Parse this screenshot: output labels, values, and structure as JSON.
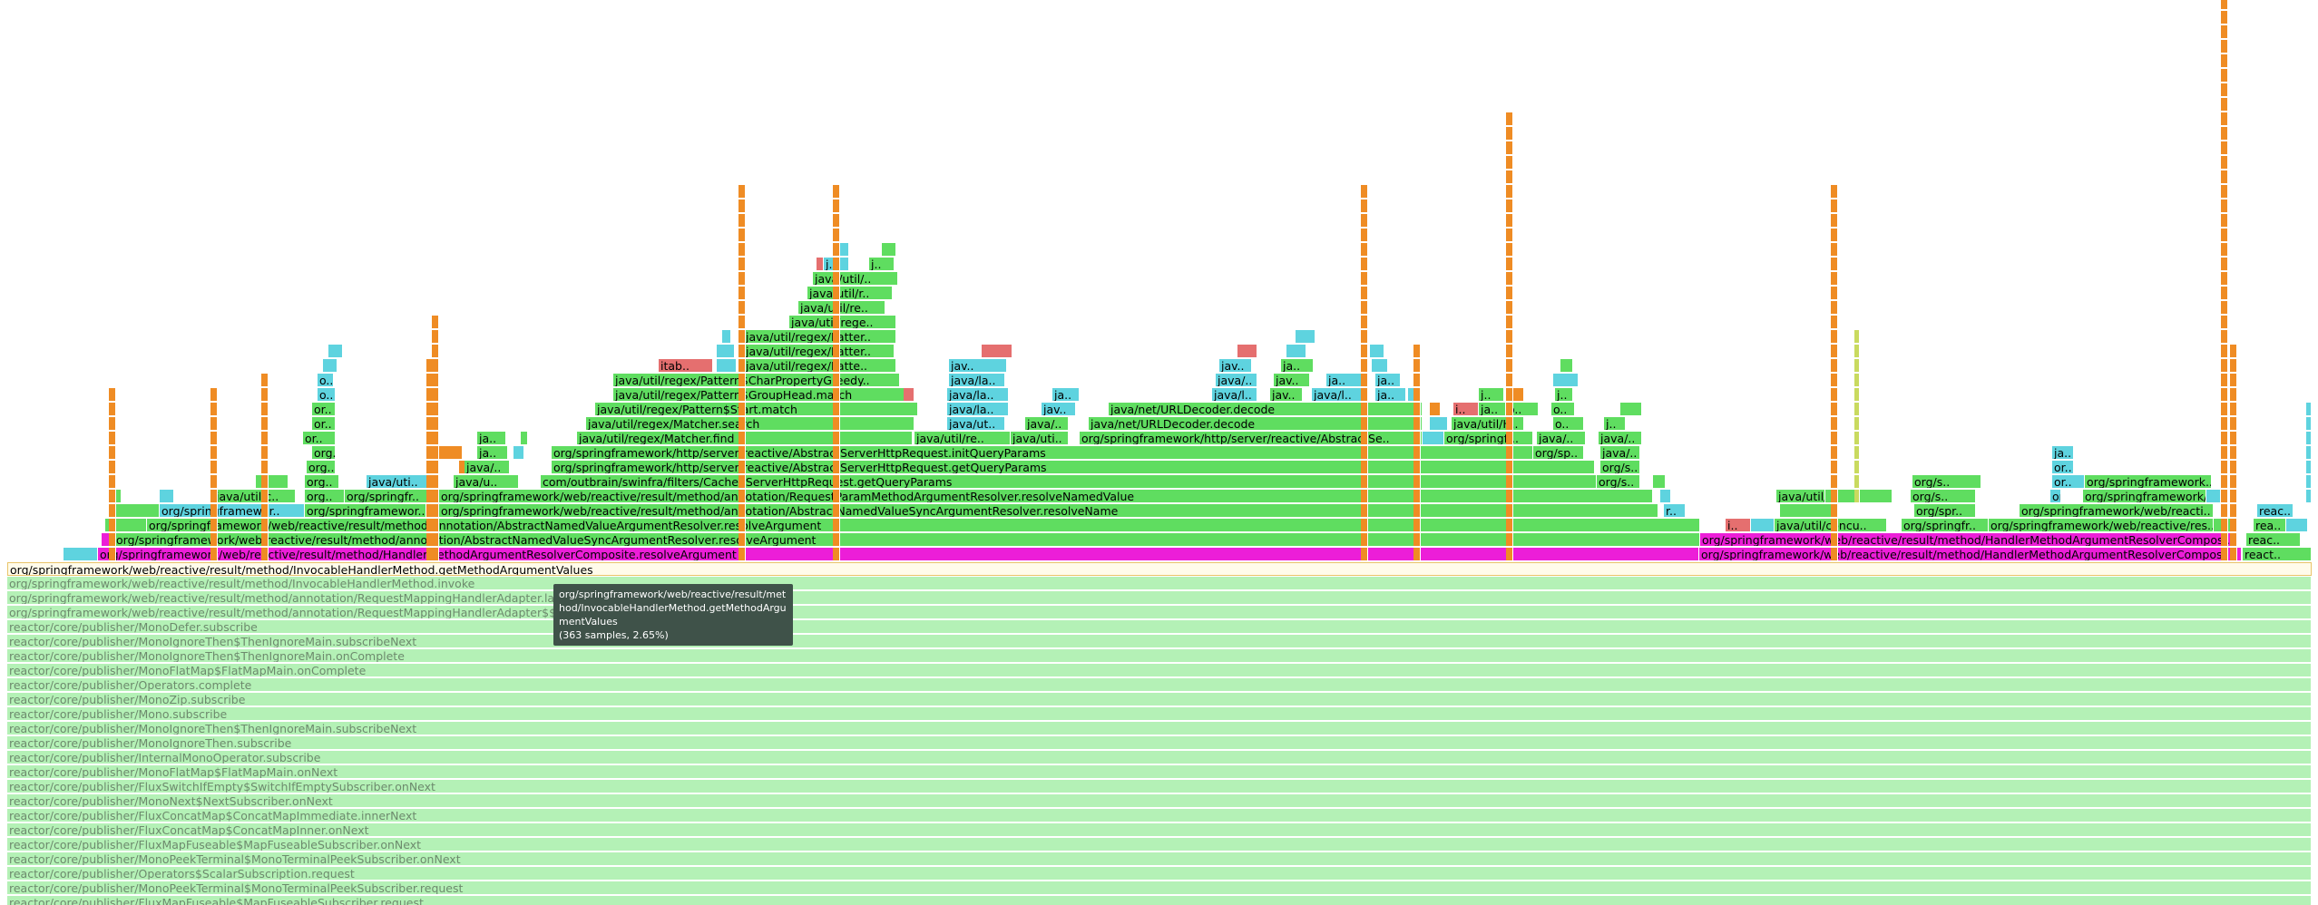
{
  "colors": {
    "green": "#5fdd60",
    "cyan": "#5ed3df",
    "orange": "#ef8c24",
    "magenta": "#ec1ed8",
    "red": "#e56f6f",
    "yellow": "#c9da5f",
    "pale": "#b4f1b6",
    "selected": "#fffbea"
  },
  "tooltip": {
    "name": "org/springframework/web/reactive/result/method/InvocableHandlerMethod.getMethodArgumentValues",
    "samples": "(363 samples, 2.65%)"
  },
  "selected_frame": "org/springframework/web/reactive/result/method/InvocableHandlerMethod.getMethodArgumentValues",
  "ancestor_frames": [
    "org/springframework/web/reactive/result/method/InvocableHandlerMethod.invoke",
    "org/springframework/web/reactive/result/method/annotation/RequestMappingHandlerAdapter.lambda$handle$1",
    "org/springframework/web/reactive/result/method/annotation/RequestMappingHandlerAdapter$$Lambda",
    "reactor/core/publisher/MonoDefer.subscribe",
    "reactor/core/publisher/MonoIgnoreThen$ThenIgnoreMain.subscribeNext",
    "reactor/core/publisher/MonoIgnoreThen$ThenIgnoreMain.onComplete",
    "reactor/core/publisher/MonoFlatMap$FlatMapMain.onComplete",
    "reactor/core/publisher/Operators.complete",
    "reactor/core/publisher/MonoZip.subscribe",
    "reactor/core/publisher/Mono.subscribe",
    "reactor/core/publisher/MonoIgnoreThen$ThenIgnoreMain.subscribeNext",
    "reactor/core/publisher/MonoIgnoreThen.subscribe",
    "reactor/core/publisher/InternalMonoOperator.subscribe",
    "reactor/core/publisher/MonoFlatMap$FlatMapMain.onNext",
    "reactor/core/publisher/FluxSwitchIfEmpty$SwitchIfEmptySubscriber.onNext",
    "reactor/core/publisher/MonoNext$NextSubscriber.onNext",
    "reactor/core/publisher/FluxConcatMap$ConcatMapImmediate.innerNext",
    "reactor/core/publisher/FluxConcatMap$ConcatMapInner.onNext",
    "reactor/core/publisher/FluxMapFuseable$MapFuseableSubscriber.onNext",
    "reactor/core/publisher/MonoPeekTerminal$MonoTerminalPeekSubscriber.onNext",
    "reactor/core/publisher/Operators$ScalarSubscription.request",
    "reactor/core/publisher/MonoPeekTerminal$MonoTerminalPeekSubscriber.request",
    "reactor/core/publisher/FluxMapFuseable$MapFuseableSubscriber.request"
  ],
  "frames": {
    "composite_left": "org/springframework/web/reactive/result/method/HandlerMethodArgumentResolverComposite.resolveArgument",
    "composite_mid": "org/springframework/web/reactive/result/method/HandlerMethodArgumentResolverComposi..",
    "reactor_right": "react..",
    "sync_resolve": "org/springframework/web/reactive/result/method/annotation/AbstractNamedValueSyncArgumentResolver.resolveArgument",
    "abstract_resolve": "org/springframework/web/reactive/result/method/annotation/AbstractNamedValueArgumentResolver.resolveArgument",
    "sync_resolve_name": "org/springframework/web/reactive/result/method/annotation/AbstractNamedValueSyncArgumentResolver.resolveName",
    "request_param": "org/springframework/web/reactive/result/method/annotation/RequestParamMethodArgumentResolver.resolveNamedValue",
    "cached_request": "com/outbrain/swinfra/filters/CachedServerHttpRequest.getQueryParams",
    "get_query_params": "org/springframework/http/server/reactive/AbstractServerHttpRequest.getQueryParams",
    "init_query_params": "org/springframework/http/server/reactive/AbstractServerHttpRequest.initQueryParams",
    "matcher_find": "java/util/regex/Matcher.find",
    "matcher_search": "java/util/regex/Matcher.search",
    "pattern_start": "java/util/regex/Pattern$Start.match",
    "group_head": "java/util/regex/Pattern$GroupHead.match",
    "char_property": "java/util/regex/Pattern$CharPropertyGreedy..",
    "pattern_1": "java/util/regex/Patter..",
    "pattern_2": "java/util/regex/Patter..",
    "pattern_3": "java/util/regex/Patte..",
    "regex_1": "java/util/rege..",
    "regex_2": "java/util/re..",
    "regex_3": "java/util/r..",
    "regex_4": "java/util/..",
    "itab": "itab..",
    "url_decoder_1": "java/net/URLDecoder.decode",
    "url_decoder_2": "java/net/URLDecoder.decode",
    "abstract_se": "org/springframework/http/server/reactive/AbstractSe..",
    "util_re": "java/util/re..",
    "java_uti": "java/uti..",
    "java_ut": "java/ut..",
    "java_a": "java/..",
    "java_la": "java/la..",
    "java_util_c": "java/util/c..",
    "java_uti_b": "java/uti..",
    "java_u": "java/u..",
    "springfr_1": "org/springfr..",
    "springwor_1": "org/springframewor..",
    "springwor_2": "org/springframewor..",
    "springfr_2": "org/springfr..",
    "org_s_1": "org/s..",
    "org_s_2": "org/s..",
    "org_sp": "org/sp..",
    "springfr_3": "org/springfr..",
    "java_util_h": "java/util/H..",
    "java_concu_1": "java/util/concu..",
    "java_concu_2": "java/util/concu..",
    "springfr_4": "org/springfr..",
    "spr": "org/spr..",
    "web_reacti": "org/springframework/web/reacti..",
    "web_res": "org/springframework/web/reactive/res..",
    "springframework_dots": "org/springframework..",
    "rea": "rea..",
    "reac": "reac..",
    "org_dots": "org..",
    "ja": "ja..",
    "jav": "jav..",
    "j": "j..",
    "o": "o..",
    "or": "or..",
    "r": "r..",
    "i": "i..",
    "java_l": "java/l.."
  }
}
